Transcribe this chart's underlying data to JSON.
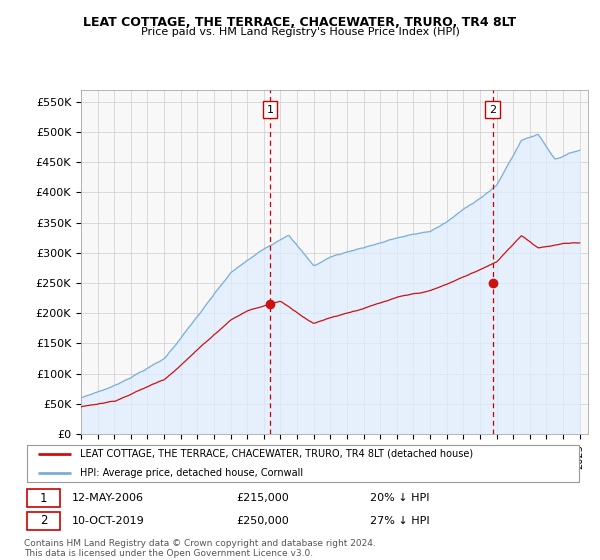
{
  "title": "LEAT COTTAGE, THE TERRACE, CHACEWATER, TRURO, TR4 8LT",
  "subtitle": "Price paid vs. HM Land Registry's House Price Index (HPI)",
  "ylabel_ticks": [
    "£0",
    "£50K",
    "£100K",
    "£150K",
    "£200K",
    "£250K",
    "£300K",
    "£350K",
    "£400K",
    "£450K",
    "£500K",
    "£550K"
  ],
  "ytick_vals": [
    0,
    50000,
    100000,
    150000,
    200000,
    250000,
    300000,
    350000,
    400000,
    450000,
    500000,
    550000
  ],
  "ylim": [
    0,
    570000
  ],
  "hpi_color": "#7aaed6",
  "hpi_fill_color": "#ddeeff",
  "price_color": "#cc1111",
  "vline_color": "#cc0000",
  "marker1_year": 2006.37,
  "marker1_price": 215000,
  "marker2_year": 2019.78,
  "marker2_price": 250000,
  "legend_entry1": "LEAT COTTAGE, THE TERRACE, CHACEWATER, TRURO, TR4 8LT (detached house)",
  "legend_entry2": "HPI: Average price, detached house, Cornwall",
  "annotation1_label": "1",
  "annotation2_label": "2",
  "footer": "Contains HM Land Registry data © Crown copyright and database right 2024.\nThis data is licensed under the Open Government Licence v3.0.",
  "xmin": 1995,
  "xmax": 2025.5
}
